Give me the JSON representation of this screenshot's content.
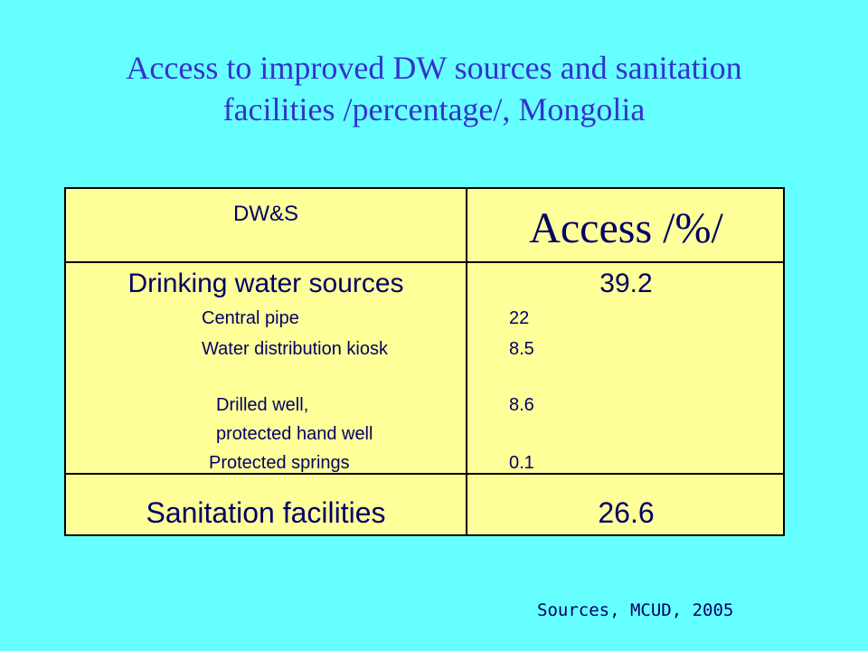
{
  "title": {
    "line1": "Access to improved DW sources and sanitation",
    "line2": "facilities /percentage/, Mongolia"
  },
  "table": {
    "header_left": "DW&S",
    "header_right": "Access /%/",
    "drinking_water": {
      "label": "Drinking water sources",
      "value": "39.2",
      "items": [
        {
          "label": "Central pipe",
          "value": "22"
        },
        {
          "label": "Water distribution kiosk",
          "value": "8.5"
        },
        {
          "label": "Drilled well,",
          "value": "8.6"
        },
        {
          "label": "protected hand well",
          "value": ""
        },
        {
          "label": "Protected springs",
          "value": "0.1"
        }
      ]
    },
    "sanitation": {
      "label": "Sanitation facilities",
      "value": "26.6"
    }
  },
  "source": "Sources, MCUD, 2005",
  "colors": {
    "background": "#66FFFF",
    "title": "#3333CC",
    "table_fill": "#FFFF99",
    "text": "#000066"
  }
}
